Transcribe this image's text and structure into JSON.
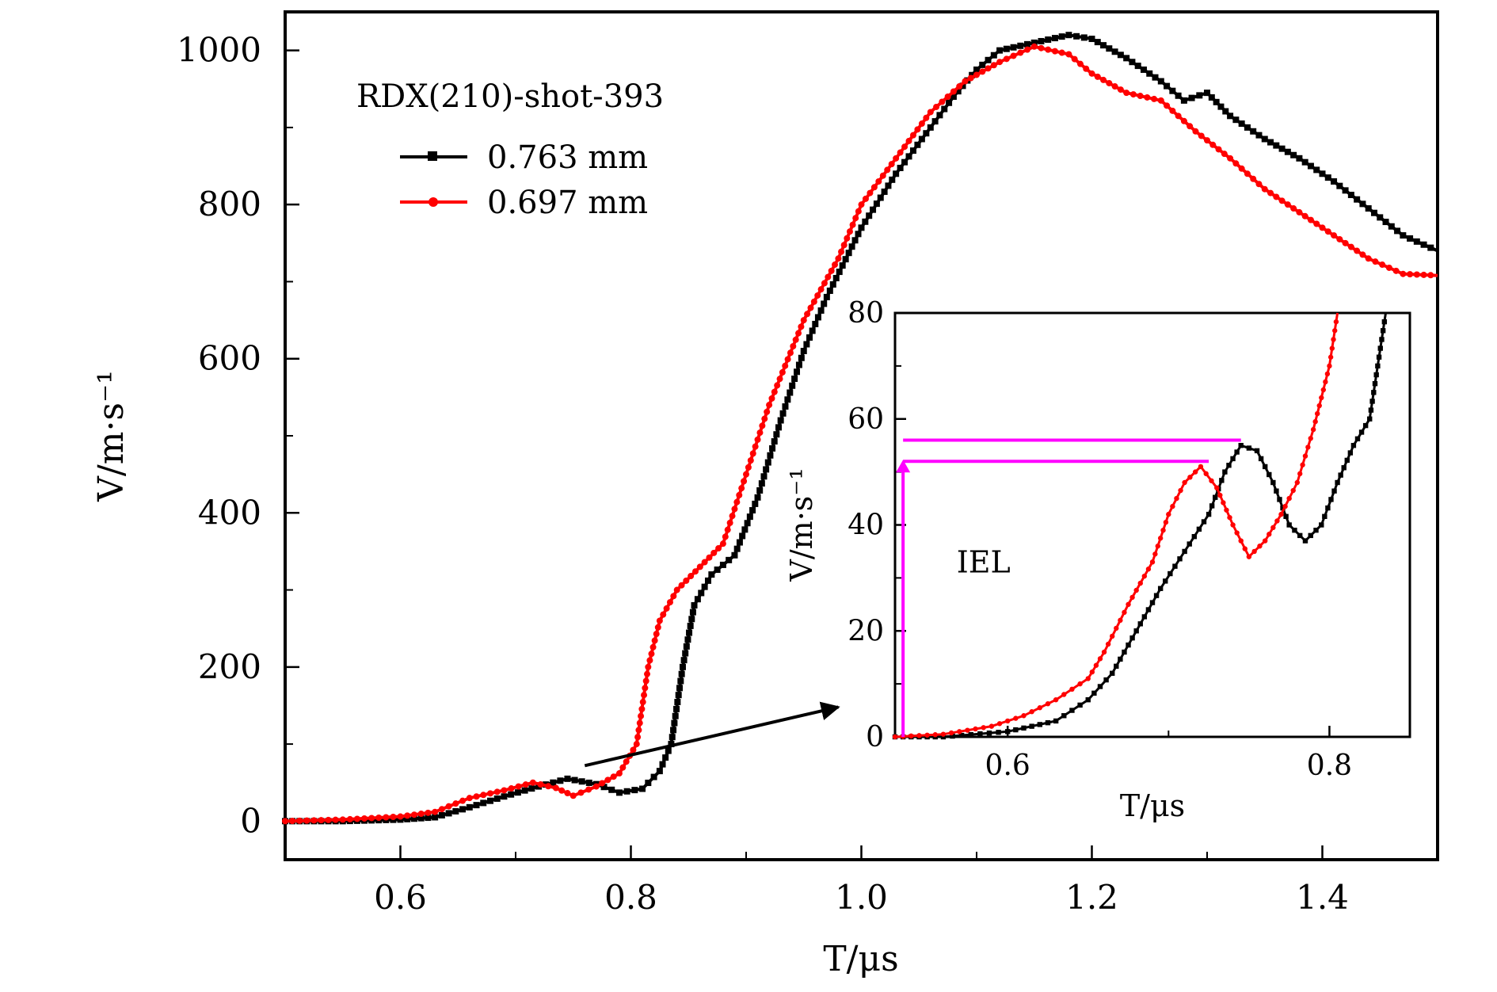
{
  "chart_data": [
    {
      "type": "line",
      "title": "",
      "xlabel": "T/μs",
      "ylabel": "V/m·s⁻¹",
      "xlim": [
        0.5,
        1.5
      ],
      "ylim": [
        -50,
        1050
      ],
      "xticks": [
        0.6,
        0.8,
        1.0,
        1.2,
        1.4
      ],
      "xtick_labels": [
        "0.6",
        "0.8",
        "1.0",
        "1.2",
        "1.4"
      ],
      "yticks": [
        0,
        200,
        400,
        600,
        800,
        1000
      ],
      "ytick_labels": [
        "0",
        "200",
        "400",
        "600",
        "800",
        "1000"
      ],
      "legend": {
        "title": "RDX(210)-shot-393",
        "placement": "top-left",
        "entries": [
          "0.763 mm",
          "0.697 mm"
        ]
      },
      "series": [
        {
          "name": "0.763 mm",
          "color": "#000000",
          "marker": "square",
          "x": [
            0.5,
            0.55,
            0.6,
            0.63,
            0.66,
            0.69,
            0.72,
            0.745,
            0.77,
            0.79,
            0.81,
            0.825,
            0.835,
            0.845,
            0.855,
            0.87,
            0.89,
            0.91,
            0.93,
            0.95,
            0.97,
            1.0,
            1.03,
            1.06,
            1.08,
            1.1,
            1.12,
            1.15,
            1.18,
            1.2,
            1.23,
            1.26,
            1.28,
            1.3,
            1.32,
            1.35,
            1.38,
            1.41,
            1.44,
            1.47,
            1.5
          ],
          "y": [
            0,
            0,
            2,
            5,
            18,
            32,
            45,
            55,
            48,
            37,
            42,
            65,
            100,
            200,
            280,
            320,
            345,
            420,
            520,
            610,
            680,
            770,
            840,
            900,
            940,
            975,
            1000,
            1010,
            1020,
            1015,
            990,
            960,
            935,
            945,
            915,
            885,
            860,
            830,
            795,
            760,
            740
          ]
        },
        {
          "name": "0.697 mm",
          "color": "#ff0000",
          "marker": "circle",
          "x": [
            0.5,
            0.55,
            0.6,
            0.63,
            0.66,
            0.69,
            0.715,
            0.735,
            0.75,
            0.77,
            0.79,
            0.805,
            0.815,
            0.825,
            0.84,
            0.86,
            0.88,
            0.9,
            0.92,
            0.95,
            0.98,
            1.0,
            1.03,
            1.06,
            1.09,
            1.12,
            1.15,
            1.18,
            1.2,
            1.23,
            1.26,
            1.29,
            1.32,
            1.35,
            1.38,
            1.41,
            1.44,
            1.47,
            1.5
          ],
          "y": [
            0,
            2,
            6,
            12,
            30,
            40,
            50,
            43,
            33,
            45,
            62,
            100,
            200,
            260,
            300,
            330,
            360,
            450,
            540,
            650,
            730,
            800,
            860,
            920,
            960,
            985,
            1005,
            995,
            970,
            945,
            935,
            895,
            860,
            820,
            790,
            760,
            730,
            710,
            708
          ]
        }
      ],
      "annotations": [
        {
          "type": "arrow",
          "from": [
            0.76,
            72
          ],
          "to": [
            0.98,
            148
          ]
        }
      ]
    },
    {
      "type": "line",
      "title": "",
      "xlabel": "T/μs",
      "ylabel": "V/m·s⁻¹",
      "xlim": [
        0.53,
        0.85
      ],
      "ylim": [
        0,
        80
      ],
      "xticks": [
        0.6,
        0.8
      ],
      "xtick_labels": [
        "0.6",
        "0.8"
      ],
      "yticks": [
        0,
        20,
        40,
        60,
        80
      ],
      "ytick_labels": [
        "0",
        "20",
        "40",
        "60",
        "80"
      ],
      "series": [
        {
          "name": "0.763 mm",
          "color": "#000000",
          "marker": "square",
          "x": [
            0.53,
            0.56,
            0.6,
            0.63,
            0.65,
            0.665,
            0.68,
            0.695,
            0.71,
            0.725,
            0.735,
            0.745,
            0.755,
            0.765,
            0.775,
            0.785,
            0.795,
            0.805,
            0.815,
            0.825,
            0.835
          ],
          "y": [
            0,
            0,
            1,
            3,
            7,
            12,
            20,
            28,
            35,
            42,
            50,
            55,
            54,
            48,
            40,
            37,
            40,
            48,
            55,
            60,
            80
          ]
        },
        {
          "name": "0.697 mm",
          "color": "#ff0000",
          "marker": "circle",
          "x": [
            0.53,
            0.56,
            0.59,
            0.61,
            0.63,
            0.65,
            0.66,
            0.675,
            0.69,
            0.7,
            0.71,
            0.72,
            0.73,
            0.74,
            0.75,
            0.76,
            0.77,
            0.78,
            0.79,
            0.8,
            0.805
          ],
          "y": [
            0,
            0.5,
            2,
            4,
            7,
            11,
            16,
            25,
            33,
            42,
            48,
            51,
            47,
            40,
            34,
            37,
            42,
            48,
            58,
            70,
            80
          ]
        }
      ],
      "annotations": [
        {
          "type": "text",
          "text": "IEL",
          "at": [
            0.585,
            31
          ]
        },
        {
          "type": "hline",
          "y": 56,
          "x_from": 0.535,
          "x_to": 0.745,
          "color": "#ff00ff"
        },
        {
          "type": "hline",
          "y": 52,
          "x_from": 0.535,
          "x_to": 0.725,
          "color": "#ff00ff"
        },
        {
          "type": "vline",
          "x": 0.535,
          "y_from": 0,
          "y_to": 52,
          "color": "#ff00ff",
          "arrowhead": "top"
        }
      ]
    }
  ]
}
